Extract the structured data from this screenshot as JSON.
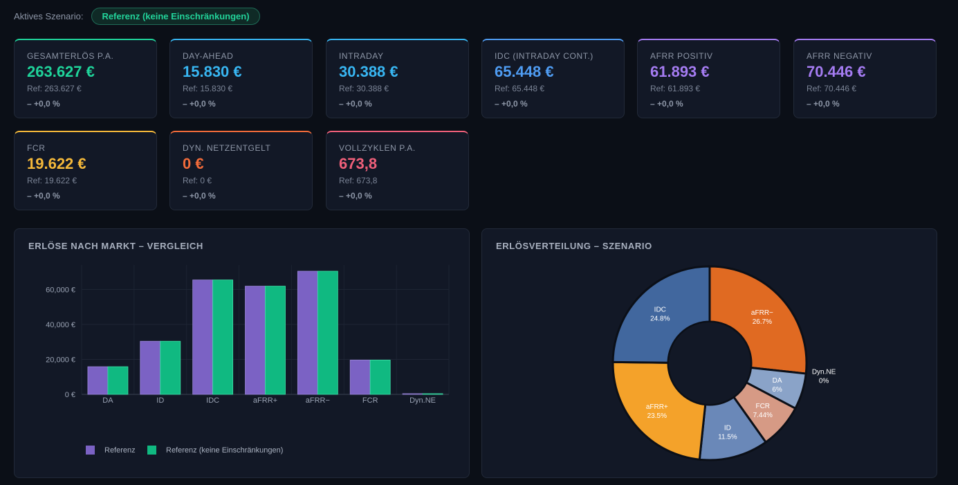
{
  "scenario": {
    "label": "Aktives Szenario:",
    "active": "Referenz (keine Einschränkungen)"
  },
  "kpis": [
    {
      "title": "GESAMTERLÖS P.A.",
      "value": "263.627 €",
      "ref": "Ref: 263.627 €",
      "delta": "– +0,0 %",
      "color": "#1fd39a"
    },
    {
      "title": "DAY-AHEAD",
      "value": "15.830 €",
      "ref": "Ref: 15.830 €",
      "delta": "– +0,0 %",
      "color": "#38b6f2"
    },
    {
      "title": "INTRADAY",
      "value": "30.388 €",
      "ref": "Ref: 30.388 €",
      "delta": "– +0,0 %",
      "color": "#38b6f2"
    },
    {
      "title": "IDC (INTRADAY CONT.)",
      "value": "65.448 €",
      "ref": "Ref: 65.448 €",
      "delta": "– +0,0 %",
      "color": "#4f9cf2"
    },
    {
      "title": "AFRR POSITIV",
      "value": "61.893 €",
      "ref": "Ref: 61.893 €",
      "delta": "– +0,0 %",
      "color": "#a57cf2"
    },
    {
      "title": "AFRR NEGATIV",
      "value": "70.446 €",
      "ref": "Ref: 70.446 €",
      "delta": "– +0,0 %",
      "color": "#a57cf2"
    },
    {
      "title": "FCR",
      "value": "19.622 €",
      "ref": "Ref: 19.622 €",
      "delta": "– +0,0 %",
      "color": "#f5b93a"
    },
    {
      "title": "DYN. NETZENTGELT",
      "value": "0 €",
      "ref": "Ref: 0 €",
      "delta": "– +0,0 %",
      "color": "#f26b3a"
    },
    {
      "title": "VOLLZYKLEN P.A.",
      "value": "673,8",
      "ref": "Ref: 673,8",
      "delta": "– +0,0 %",
      "color": "#f0607a"
    }
  ],
  "bar_panel": {
    "title": "ERLÖSE NACH MARKT – VERGLEICH"
  },
  "pie_panel": {
    "title": "ERLÖSVERTEILUNG – SZENARIO"
  },
  "chart_data": [
    {
      "type": "bar",
      "title": "ERLÖSE NACH MARKT – VERGLEICH",
      "categories": [
        "DA",
        "ID",
        "IDC",
        "aFRR+",
        "aFRR−",
        "FCR",
        "Dyn.NE"
      ],
      "series": [
        {
          "name": "Referenz",
          "color": "#7b62c4",
          "values": [
            15830,
            30388,
            65448,
            61893,
            70446,
            19622,
            0
          ]
        },
        {
          "name": "Referenz (keine Einschränkungen)",
          "color": "#10b981",
          "values": [
            15830,
            30388,
            65448,
            61893,
            70446,
            19622,
            0
          ]
        }
      ],
      "yticks": [
        0,
        20000,
        40000,
        60000
      ],
      "ytick_labels": [
        "0 €",
        "20,000 €",
        "40,000 €",
        "60,000 €"
      ],
      "ylim": [
        0,
        74000
      ],
      "grid": true,
      "legend": "bottom-left"
    },
    {
      "type": "pie",
      "title": "ERLÖSVERTEILUNG – SZENARIO",
      "donut": true,
      "slices": [
        {
          "label": "aFRR−",
          "pct": "26.7%",
          "value": 26.7,
          "color": "#e06a22"
        },
        {
          "label": "Dyn.NE",
          "pct": "0%",
          "value": 0,
          "color": "#9aa9c4"
        },
        {
          "label": "DA",
          "pct": "6%",
          "value": 6.0,
          "color": "#8aa3c8"
        },
        {
          "label": "FCR",
          "pct": "7.44%",
          "value": 7.44,
          "color": "#d69a85"
        },
        {
          "label": "ID",
          "pct": "11.5%",
          "value": 11.5,
          "color": "#6a88b8"
        },
        {
          "label": "aFRR+",
          "pct": "23.5%",
          "value": 23.5,
          "color": "#f4a22a"
        },
        {
          "label": "IDC",
          "pct": "24.8%",
          "value": 24.8,
          "color": "#41679e"
        }
      ]
    }
  ]
}
